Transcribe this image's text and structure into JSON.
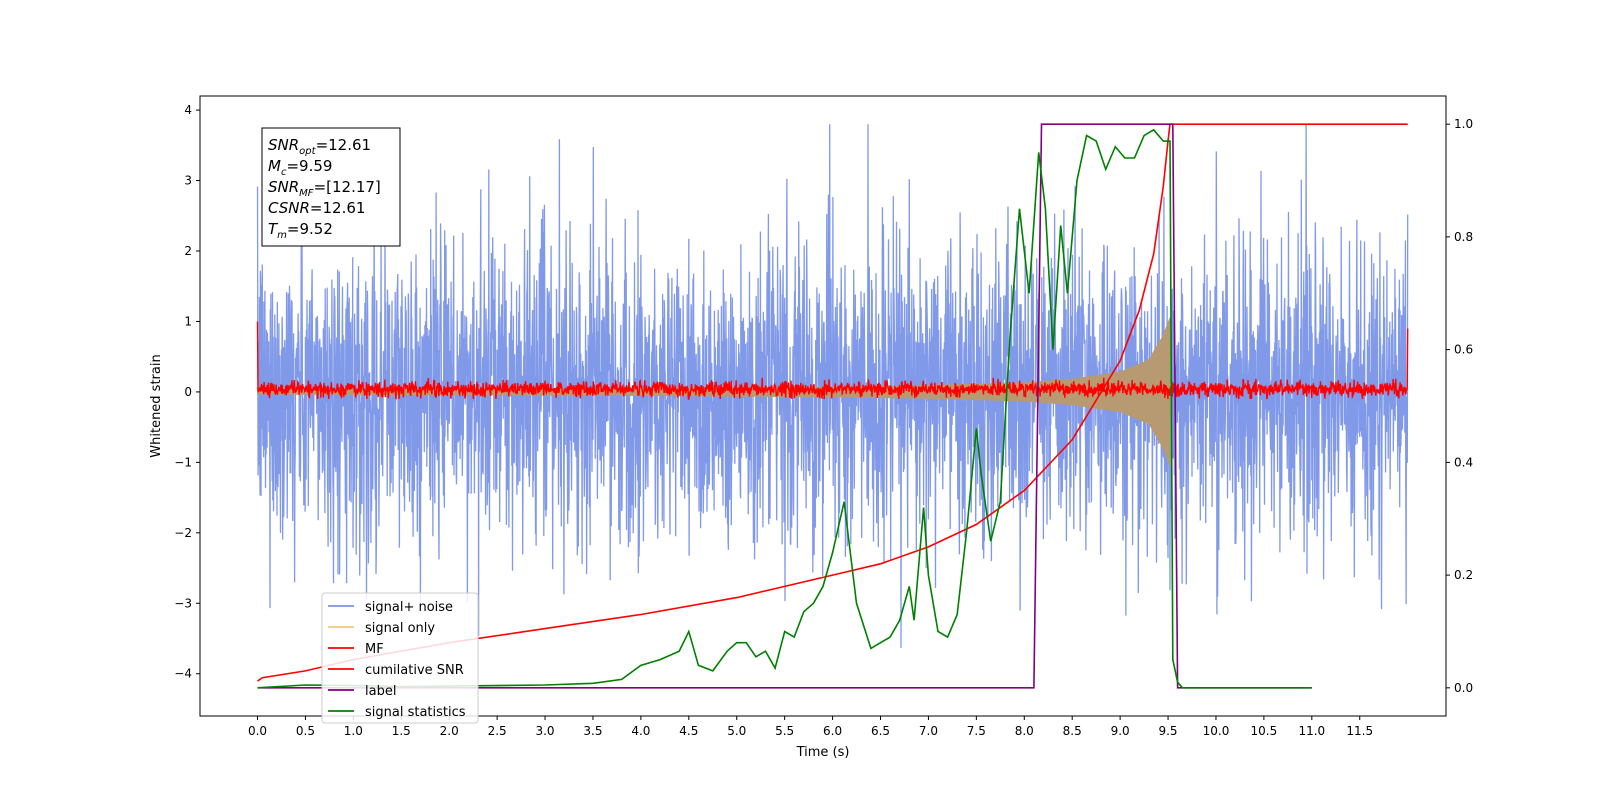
{
  "chart_data": {
    "type": "line",
    "title": "",
    "xlabel": "Time (s)",
    "ylabel": "Whitened strain",
    "xlim": [
      -0.6,
      12.4
    ],
    "ylim": [
      -4.6,
      4.2
    ],
    "y2lim": [
      -0.05,
      1.05
    ],
    "grid": false,
    "x_ticks": [
      "0.0",
      "0.5",
      "1.0",
      "1.5",
      "2.0",
      "2.5",
      "3.0",
      "3.5",
      "4.0",
      "4.5",
      "5.0",
      "5.5",
      "6.0",
      "6.5",
      "7.0",
      "7.5",
      "8.0",
      "8.5",
      "9.0",
      "9.5",
      "10.0",
      "10.5",
      "11.0",
      "11.5"
    ],
    "y_ticks": [
      "4",
      "3",
      "2",
      "1",
      "0",
      "−1",
      "−2",
      "−3",
      "−4"
    ],
    "y2_ticks": [
      "1.0",
      "0.8",
      "0.6",
      "0.4",
      "0.2",
      "0.0"
    ],
    "annotation": [
      {
        "sym": "SNR",
        "sub": "opt",
        "val": "=12.61"
      },
      {
        "sym": "M",
        "sub": "c",
        "val": "=9.59"
      },
      {
        "sym": "SNR",
        "sub": "MF",
        "val": "=[12.17]"
      },
      {
        "sym": "CSNR",
        "sub": "",
        "val": "=12.61"
      },
      {
        "sym": "T",
        "sub": "m",
        "val": "=9.52"
      }
    ],
    "legend": {
      "placement": "lower-left",
      "entries": [
        {
          "name": "signal+ noise",
          "color": "#7a94e8"
        },
        {
          "name": "signal only",
          "color": "#f5c97a"
        },
        {
          "name": "MF",
          "color": "#ff0000"
        },
        {
          "name": "cumilative SNR",
          "color": "#ff0000"
        },
        {
          "name": "label",
          "color": "#800080"
        },
        {
          "name": "signal statistics",
          "color": "#008000"
        }
      ]
    },
    "series": [
      {
        "name": "signal+ noise",
        "axis": "left",
        "color": "#7a94e8",
        "x_range": [
          0.0,
          12.0
        ],
        "amplitude_band": [
          -2.6,
          2.6
        ],
        "peak_range": [
          -3.9,
          3.8
        ]
      },
      {
        "name": "signal only",
        "axis": "left",
        "color": "#b89a72",
        "x_range": [
          0.0,
          9.52
        ],
        "chirp_envelope": {
          "x": [
            0.0,
            4.0,
            6.0,
            7.0,
            8.0,
            8.5,
            9.0,
            9.3,
            9.45,
            9.52
          ],
          "amp": [
            0.03,
            0.05,
            0.07,
            0.09,
            0.13,
            0.18,
            0.28,
            0.45,
            0.8,
            1.05
          ]
        }
      },
      {
        "name": "MF",
        "axis": "left",
        "color": "#ff0000",
        "x_range": [
          0.0,
          12.0
        ],
        "band": [
          -0.1,
          0.2
        ],
        "edge_values": [
          1.0,
          0.9
        ]
      },
      {
        "name": "cumilative SNR",
        "axis": "right",
        "color": "#ff0000",
        "x": [
          0.0,
          0.05,
          0.5,
          1.0,
          2.0,
          3.0,
          4.0,
          5.0,
          6.0,
          6.5,
          7.0,
          7.5,
          8.0,
          8.5,
          9.0,
          9.2,
          9.35,
          9.45,
          9.5,
          9.52,
          12.0
        ],
        "y": [
          0.012,
          0.018,
          0.03,
          0.05,
          0.08,
          0.105,
          0.13,
          0.16,
          0.2,
          0.22,
          0.25,
          0.29,
          0.35,
          0.44,
          0.58,
          0.67,
          0.77,
          0.89,
          0.97,
          1.0,
          1.0
        ]
      },
      {
        "name": "label",
        "axis": "right",
        "color": "#800080",
        "x": [
          0.0,
          8.1,
          8.18,
          9.55,
          9.6,
          11.0
        ],
        "y": [
          0.0,
          0.0,
          1.0,
          1.0,
          0.0,
          0.0
        ]
      },
      {
        "name": "signal statistics",
        "axis": "right",
        "color": "#008000",
        "x": [
          0.0,
          0.5,
          1.0,
          1.5,
          2.0,
          2.5,
          3.0,
          3.5,
          3.8,
          4.0,
          4.2,
          4.4,
          4.5,
          4.6,
          4.75,
          4.9,
          5.0,
          5.1,
          5.2,
          5.3,
          5.4,
          5.5,
          5.6,
          5.7,
          5.8,
          5.9,
          6.0,
          6.12,
          6.25,
          6.4,
          6.5,
          6.6,
          6.7,
          6.8,
          6.85,
          6.95,
          7.0,
          7.1,
          7.2,
          7.3,
          7.4,
          7.5,
          7.55,
          7.65,
          7.75,
          7.85,
          7.95,
          8.05,
          8.15,
          8.22,
          8.3,
          8.38,
          8.45,
          8.55,
          8.65,
          8.75,
          8.85,
          8.95,
          9.05,
          9.15,
          9.25,
          9.35,
          9.45,
          9.52,
          9.55,
          9.6,
          9.65,
          10.0,
          10.5,
          11.0
        ],
        "y": [
          0.0,
          0.005,
          0.004,
          0.002,
          0.003,
          0.004,
          0.005,
          0.008,
          0.015,
          0.04,
          0.05,
          0.065,
          0.1,
          0.04,
          0.03,
          0.065,
          0.08,
          0.08,
          0.055,
          0.065,
          0.035,
          0.1,
          0.09,
          0.135,
          0.15,
          0.18,
          0.24,
          0.33,
          0.15,
          0.07,
          0.08,
          0.09,
          0.12,
          0.18,
          0.12,
          0.32,
          0.2,
          0.1,
          0.09,
          0.13,
          0.28,
          0.46,
          0.38,
          0.26,
          0.33,
          0.62,
          0.85,
          0.7,
          0.95,
          0.85,
          0.6,
          0.82,
          0.7,
          0.9,
          0.98,
          0.97,
          0.92,
          0.96,
          0.94,
          0.94,
          0.98,
          0.99,
          0.97,
          0.97,
          0.05,
          0.01,
          0.0,
          0.0,
          0.0,
          0.0
        ]
      }
    ]
  }
}
